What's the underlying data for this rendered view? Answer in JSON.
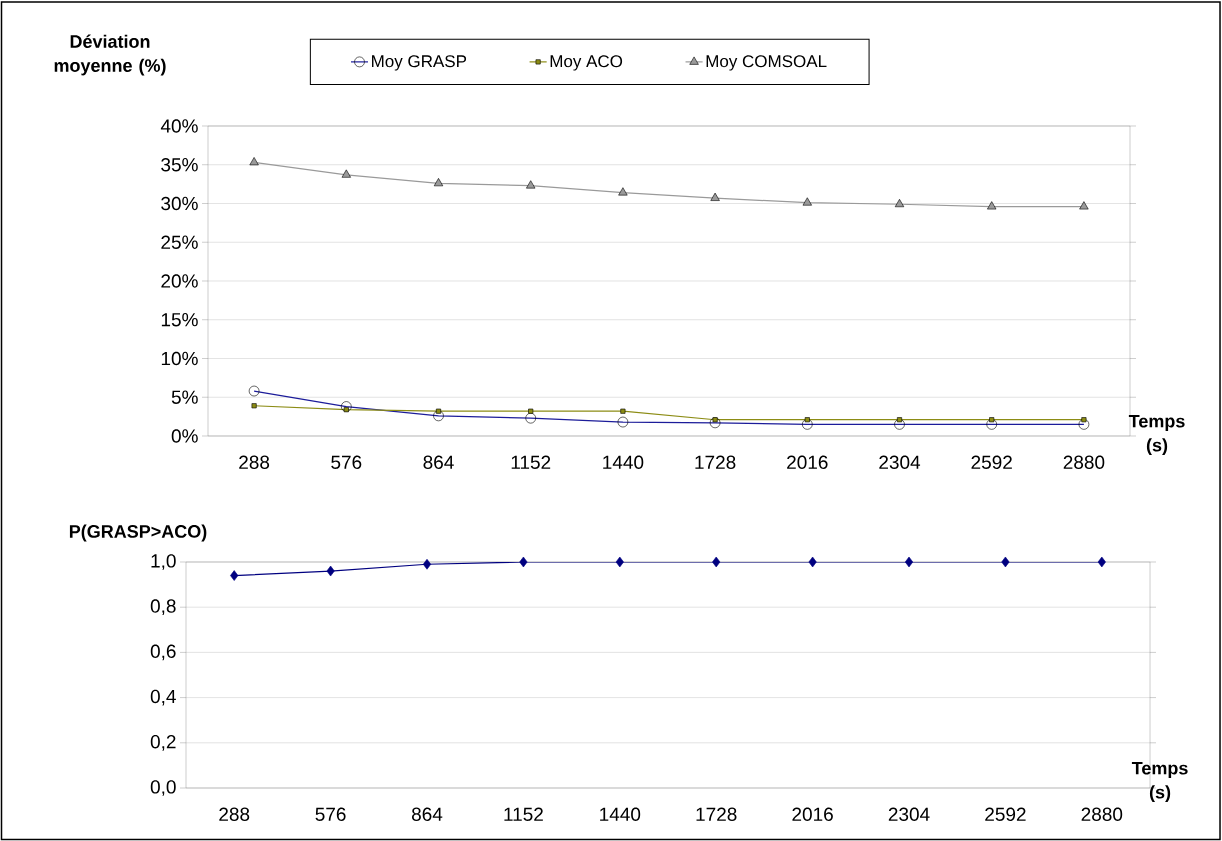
{
  "chart_data": [
    {
      "type": "line",
      "ylabel": "Déviation moyenne (%)",
      "xlabel": "Temps (s)",
      "categories": [
        "288",
        "576",
        "864",
        "1152",
        "1440",
        "1728",
        "2016",
        "2304",
        "2592",
        "2880"
      ],
      "series": [
        {
          "name": "Moy GRASP",
          "color": "#1c1c9a",
          "marker": "circle",
          "values": [
            5.8,
            3.8,
            2.6,
            2.3,
            1.8,
            1.7,
            1.5,
            1.5,
            1.5,
            1.5
          ]
        },
        {
          "name": "Moy ACO",
          "color": "#8c8c14",
          "marker": "square",
          "values": [
            3.9,
            3.4,
            3.2,
            3.2,
            3.2,
            2.1,
            2.1,
            2.1,
            2.1,
            2.1
          ]
        },
        {
          "name": "Moy COMSOAL",
          "color": "#9a9a9a",
          "marker": "triangle",
          "values": [
            35.3,
            33.7,
            32.6,
            32.3,
            31.4,
            30.7,
            30.1,
            29.9,
            29.6,
            29.6
          ]
        }
      ],
      "ylim": [
        0,
        40
      ],
      "yticks": [
        {
          "value": 0,
          "label": "0%"
        },
        {
          "value": 5,
          "label": "5%"
        },
        {
          "value": 10,
          "label": "10%"
        },
        {
          "value": 15,
          "label": "15%"
        },
        {
          "value": 20,
          "label": "20%"
        },
        {
          "value": 25,
          "label": "25%"
        },
        {
          "value": 30,
          "label": "30%"
        },
        {
          "value": 35,
          "label": "35%"
        },
        {
          "value": 40,
          "label": "40%"
        }
      ],
      "grid": "y",
      "legend": "top"
    },
    {
      "type": "line",
      "ylabel": "P(GRASP>ACO)",
      "xlabel": "Temps (s)",
      "categories": [
        "288",
        "576",
        "864",
        "1152",
        "1440",
        "1728",
        "2016",
        "2304",
        "2592",
        "2880"
      ],
      "series": [
        {
          "color": "#000080",
          "marker": "diamond",
          "values": [
            0.94,
            0.96,
            0.99,
            1.0,
            1.0,
            1.0,
            1.0,
            1.0,
            1.0,
            1.0
          ]
        }
      ],
      "ylim": [
        0,
        1
      ],
      "yticks": [
        {
          "value": 0,
          "label": "0,0"
        },
        {
          "value": 0.2,
          "label": "0,2"
        },
        {
          "value": 0.4,
          "label": "0,4"
        },
        {
          "value": 0.6,
          "label": "0,6"
        },
        {
          "value": 0.8,
          "label": "0,8"
        },
        {
          "value": 1,
          "label": "1,0"
        }
      ],
      "grid": "y"
    }
  ]
}
